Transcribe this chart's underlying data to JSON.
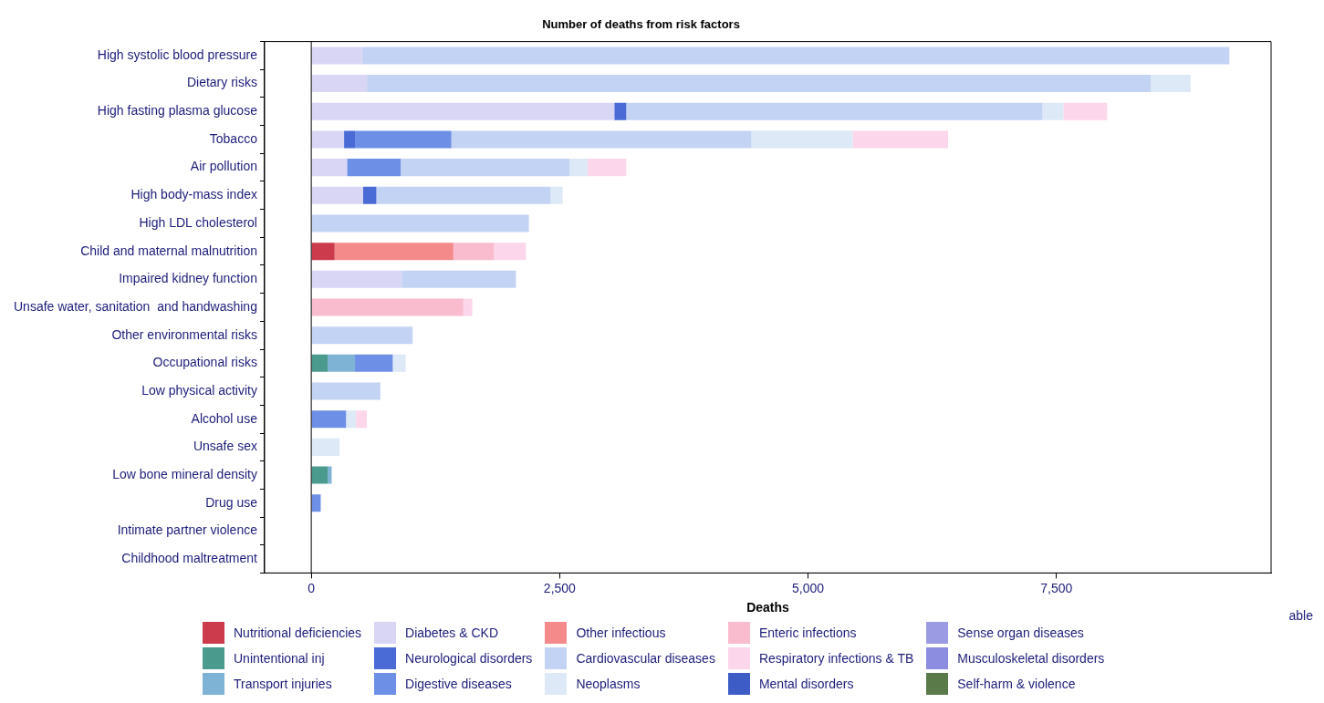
{
  "chart_data": {
    "type": "bar",
    "orientation": "horizontal",
    "stacked": true,
    "title": "Number of deaths from risk factors",
    "xlabel": "Deaths",
    "categories": [
      "High systolic blood pressure",
      "Dietary risks",
      "High fasting plasma glucose",
      "Tobacco",
      "Air pollution",
      "High body-mass index",
      "High LDL cholesterol",
      "Child and maternal malnutrition",
      "Impaired kidney function",
      "Unsafe water, sanitation  and handwashing",
      "Other environmental risks",
      "Occupational risks",
      "Low physical activity",
      "Alcohol use",
      "Unsafe sex",
      "Low bone mineral density",
      "Drug use",
      "Intimate partner violence",
      "Childhood maltreatment"
    ],
    "series": [
      {
        "name": "Nutritional deficiencies",
        "color": "#cc3b4b",
        "values": [
          null,
          null,
          null,
          null,
          null,
          null,
          null,
          235,
          null,
          null,
          null,
          null,
          null,
          null,
          null,
          null,
          null,
          null,
          null
        ]
      },
      {
        "name": "Unintentional inj",
        "color": "#4a9a8e",
        "values": [
          null,
          null,
          null,
          null,
          null,
          null,
          null,
          null,
          null,
          null,
          null,
          165,
          null,
          null,
          null,
          165,
          null,
          null,
          null
        ]
      },
      {
        "name": "Transport injuries",
        "color": "#7fb3d5",
        "values": [
          null,
          null,
          null,
          null,
          null,
          null,
          null,
          null,
          null,
          null,
          null,
          275,
          null,
          null,
          null,
          40,
          null,
          null,
          null
        ]
      },
      {
        "name": "Diabetes & CKD",
        "color": "#d8d6f4",
        "values": [
          510,
          560,
          3050,
          330,
          360,
          520,
          null,
          null,
          910,
          null,
          null,
          null,
          null,
          null,
          null,
          null,
          null,
          null,
          null
        ]
      },
      {
        "name": "Neurological disorders",
        "color": "#4a6ad6",
        "values": [
          null,
          null,
          120,
          110,
          null,
          135,
          null,
          null,
          null,
          null,
          null,
          null,
          null,
          null,
          null,
          null,
          null,
          null,
          null
        ]
      },
      {
        "name": "Digestive diseases",
        "color": "#6d8fe6",
        "values": [
          null,
          null,
          null,
          970,
          540,
          null,
          null,
          null,
          null,
          null,
          null,
          380,
          null,
          350,
          null,
          null,
          95,
          null,
          null
        ]
      },
      {
        "name": "Other infectious",
        "color": "#f48a8a",
        "values": [
          null,
          null,
          null,
          null,
          null,
          null,
          null,
          1195,
          null,
          null,
          null,
          null,
          null,
          null,
          null,
          null,
          null,
          null,
          null
        ]
      },
      {
        "name": "Cardiovascular diseases",
        "color": "#c3d3f3",
        "values": [
          8730,
          7890,
          4190,
          3020,
          1700,
          1755,
          2190,
          null,
          1150,
          null,
          1020,
          null,
          695,
          null,
          null,
          null,
          null,
          null,
          null
        ]
      },
      {
        "name": "Neoplasms",
        "color": "#dde9f6",
        "values": [
          null,
          400,
          210,
          1020,
          180,
          120,
          null,
          null,
          null,
          null,
          null,
          130,
          null,
          100,
          285,
          null,
          null,
          null,
          null
        ]
      },
      {
        "name": "Enteric infections",
        "color": "#f9bccf",
        "values": [
          null,
          null,
          null,
          null,
          null,
          null,
          null,
          410,
          null,
          1530,
          null,
          null,
          null,
          null,
          null,
          null,
          null,
          null,
          null
        ]
      },
      {
        "name": "Respiratory infections & TB",
        "color": "#fcd6ea",
        "values": [
          null,
          null,
          440,
          960,
          390,
          null,
          null,
          320,
          null,
          90,
          null,
          null,
          null,
          110,
          null,
          null,
          null,
          null,
          null
        ]
      },
      {
        "name": "Mental disorders",
        "color": "#3e5cc6",
        "values": [
          null,
          null,
          null,
          null,
          null,
          null,
          null,
          null,
          null,
          null,
          null,
          null,
          null,
          null,
          null,
          null,
          null,
          null,
          null
        ]
      },
      {
        "name": "Sense organ diseases",
        "color": "#9b9be3",
        "values": [
          null,
          null,
          null,
          null,
          null,
          null,
          null,
          null,
          null,
          null,
          null,
          null,
          null,
          null,
          null,
          null,
          null,
          null,
          null
        ]
      },
      {
        "name": "Musculoskeletal disorders",
        "color": "#8c8ce0",
        "values": [
          null,
          null,
          null,
          null,
          null,
          null,
          null,
          null,
          null,
          null,
          null,
          null,
          null,
          null,
          null,
          null,
          null,
          null,
          null
        ]
      },
      {
        "name": "Self-harm & violence",
        "color": "#5a7a4a",
        "values": [
          null,
          null,
          null,
          null,
          null,
          null,
          null,
          null,
          null,
          null,
          null,
          null,
          null,
          null,
          null,
          null,
          null,
          null,
          null
        ]
      }
    ],
    "xlim": [
      -470,
      9660
    ],
    "xticks": [
      0,
      {
        "value": 2500,
        "label": "2,500"
      },
      {
        "value": 5000,
        "label": "5,000"
      },
      {
        "value": 7500,
        "label": "7,500"
      }
    ],
    "ref_lines": [
      {
        "axis": "x",
        "value": 0,
        "color": "#000000"
      }
    ],
    "grid": false,
    "legend": "bottom",
    "annotations": [
      "able"
    ]
  }
}
